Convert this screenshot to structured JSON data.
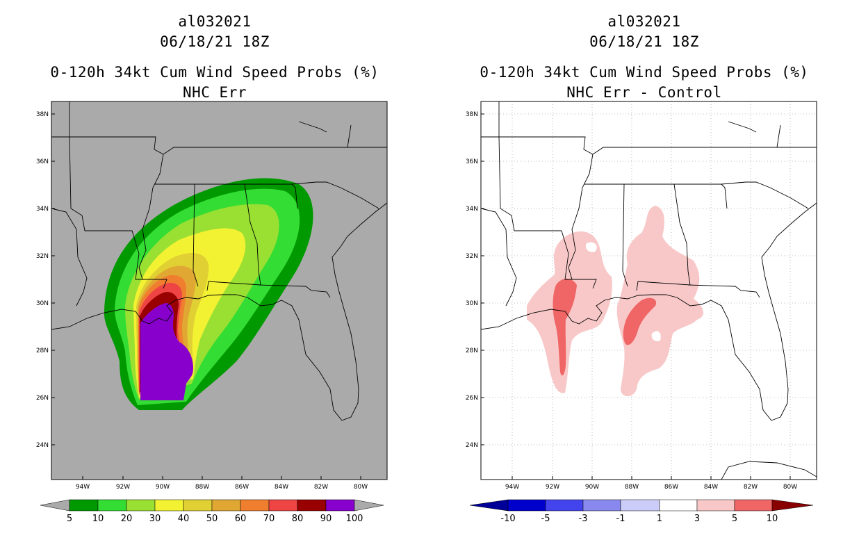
{
  "panels": [
    {
      "storm_id": "al032021",
      "datetime": "06/18/21 18Z",
      "product": "0-120h 34kt Cum Wind Speed Probs (%)",
      "subtitle": "NHC Err",
      "lat_labels": [
        "38N",
        "36N",
        "34N",
        "32N",
        "30N",
        "28N",
        "26N",
        "24N"
      ],
      "lon_labels": [
        "94W",
        "92W",
        "90W",
        "88W",
        "86W",
        "84W",
        "82W",
        "80W"
      ],
      "colorbar": {
        "labels": [
          "5",
          "10",
          "20",
          "30",
          "40",
          "50",
          "60",
          "70",
          "80",
          "90",
          "100"
        ],
        "colors": [
          "#009900",
          "#33dd33",
          "#99e033",
          "#f2f233",
          "#e0d033",
          "#e0a833",
          "#ef7f2f",
          "#ee4444",
          "#990000",
          "#8800cc"
        ],
        "end_low": "#aaaaaa",
        "end_high": "#aaaaaa"
      },
      "land_color": "#aaaaaa"
    },
    {
      "storm_id": "al032021",
      "datetime": "06/18/21 18Z",
      "product": "0-120h 34kt Cum Wind Speed Probs (%)",
      "subtitle": "NHC Err - Control",
      "lat_labels": [
        "38N",
        "36N",
        "34N",
        "32N",
        "30N",
        "28N",
        "26N",
        "24N"
      ],
      "lon_labels": [
        "94W",
        "92W",
        "90W",
        "88W",
        "86W",
        "84W",
        "82W",
        "80W"
      ],
      "colorbar": {
        "labels": [
          "-10",
          "-5",
          "-3",
          "-1",
          "1",
          "3",
          "5",
          "10"
        ],
        "colors": [
          "#0000cc",
          "#4444ee",
          "#8888ee",
          "#ccccf8",
          "#ffffff",
          "#f8c8c8",
          "#f06666",
          "#ee0000"
        ],
        "end_low": "#000099",
        "end_high": "#880000"
      },
      "land_color": "#ffffff"
    }
  ]
}
